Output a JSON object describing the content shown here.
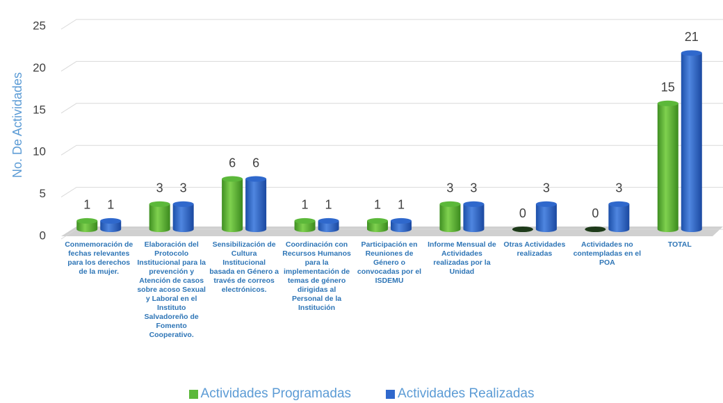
{
  "chart_data": {
    "type": "bar",
    "y_label": "No. De Actividades",
    "categories": [
      "Conmemoración de fechas relevantes para los derechos de la mujer.",
      "Elaboración del Protocolo Institucional para la prevención y Atención de casos sobre acoso Sexual y Laboral en el Instituto Salvadoreño de Fomento Cooperativo.",
      "Sensibilización de Cultura Institucional basada en Género a través de correos electrónicos.",
      "Coordinación con Recursos Humanos para la implementación de temas de género dirigidas al Personal de la Institución",
      "Participación en Reuniones de Género o convocadas por el ISDEMU",
      "Informe Mensual de Actividades realizadas por la Unidad",
      "Otras Actividades realizadas",
      "Actividades no contempladas en el POA",
      "TOTAL"
    ],
    "series": [
      {
        "name": "Actividades Programadas",
        "color": "#5cb83a",
        "values": [
          1,
          3,
          6,
          1,
          1,
          3,
          0,
          0,
          15
        ]
      },
      {
        "name": "Actividades Realizadas",
        "color": "#2f68cc",
        "values": [
          1,
          3,
          6,
          1,
          1,
          3,
          3,
          3,
          21
        ]
      }
    ],
    "ylim": [
      0,
      25
    ],
    "yticks": [
      0,
      5,
      10,
      15,
      20,
      25
    ],
    "grid": true
  }
}
